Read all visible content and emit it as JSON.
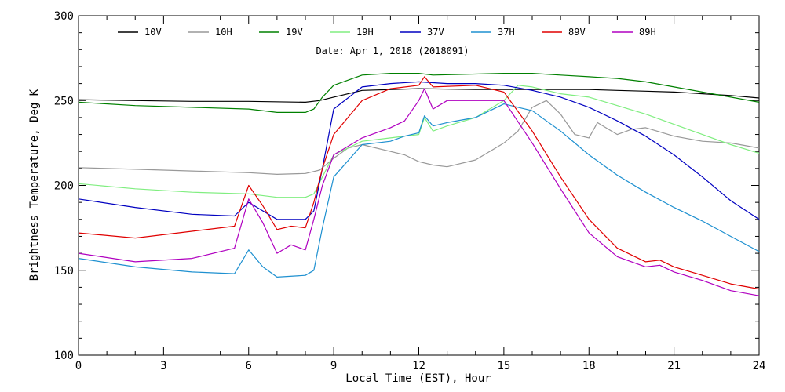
{
  "chart_data": {
    "type": "line",
    "subtitle": "Date: Apr  1, 2018 (2018091)",
    "xlabel": "Local Time (EST), Hour",
    "ylabel": "Brightness Temperature, Deg K",
    "xlim": [
      0,
      24
    ],
    "ylim": [
      100,
      300
    ],
    "xticks": [
      0,
      3,
      6,
      9,
      12,
      15,
      18,
      21,
      24
    ],
    "yticks": [
      100,
      150,
      200,
      250,
      300
    ],
    "grid": false,
    "legend": "top",
    "series": [
      {
        "name": "10V",
        "color": "#000000",
        "points": [
          [
            0,
            250.5
          ],
          [
            2,
            250
          ],
          [
            4,
            249.5
          ],
          [
            6,
            249.5
          ],
          [
            8,
            249
          ],
          [
            8.5,
            250
          ],
          [
            9,
            252
          ],
          [
            10,
            256
          ],
          [
            12,
            257
          ],
          [
            14,
            256.5
          ],
          [
            15,
            256.5
          ],
          [
            16,
            256.5
          ],
          [
            17,
            256.5
          ],
          [
            18,
            256.5
          ],
          [
            19,
            256
          ],
          [
            20,
            255.5
          ],
          [
            21,
            255
          ],
          [
            22,
            254
          ],
          [
            23,
            253
          ],
          [
            24,
            251.5
          ]
        ]
      },
      {
        "name": "10H",
        "color": "#999999",
        "points": [
          [
            0,
            210.5
          ],
          [
            2,
            209.5
          ],
          [
            4,
            208.5
          ],
          [
            6,
            207.5
          ],
          [
            7,
            206.5
          ],
          [
            8,
            207
          ],
          [
            8.5,
            209
          ],
          [
            9,
            216
          ],
          [
            9.5,
            222
          ],
          [
            10,
            224
          ],
          [
            11,
            220
          ],
          [
            11.5,
            218
          ],
          [
            12,
            214
          ],
          [
            12.5,
            212
          ],
          [
            13,
            211
          ],
          [
            14,
            215
          ],
          [
            15,
            225
          ],
          [
            15.5,
            232
          ],
          [
            16,
            246
          ],
          [
            16.5,
            250
          ],
          [
            17,
            242
          ],
          [
            17.5,
            230
          ],
          [
            18,
            228
          ],
          [
            18.3,
            237
          ],
          [
            18.7,
            233
          ],
          [
            19,
            230
          ],
          [
            19.5,
            233
          ],
          [
            20,
            234
          ],
          [
            21,
            229
          ],
          [
            22,
            226
          ],
          [
            23,
            225
          ],
          [
            24,
            222
          ]
        ]
      },
      {
        "name": "19V",
        "color": "#008000",
        "points": [
          [
            0,
            249
          ],
          [
            2,
            247
          ],
          [
            4,
            246
          ],
          [
            6,
            245
          ],
          [
            7,
            243
          ],
          [
            8,
            243
          ],
          [
            8.3,
            245
          ],
          [
            8.6,
            252
          ],
          [
            9,
            259
          ],
          [
            10,
            265
          ],
          [
            11,
            266
          ],
          [
            12,
            266
          ],
          [
            12.5,
            265
          ],
          [
            15,
            266
          ],
          [
            16,
            266
          ],
          [
            17,
            265
          ],
          [
            18,
            264
          ],
          [
            19,
            263
          ],
          [
            20,
            261
          ],
          [
            21,
            258
          ],
          [
            22,
            255
          ],
          [
            23,
            252
          ],
          [
            24,
            249
          ]
        ]
      },
      {
        "name": "19H",
        "color": "#80ee80",
        "points": [
          [
            0,
            201
          ],
          [
            2,
            198
          ],
          [
            4,
            196
          ],
          [
            6,
            195
          ],
          [
            7,
            193
          ],
          [
            8,
            193
          ],
          [
            8.3,
            195
          ],
          [
            8.6,
            205
          ],
          [
            9,
            218
          ],
          [
            10,
            226
          ],
          [
            11,
            228
          ],
          [
            11.5,
            229
          ],
          [
            12,
            230
          ],
          [
            12.2,
            240
          ],
          [
            12.5,
            232
          ],
          [
            13,
            235
          ],
          [
            14,
            240
          ],
          [
            15,
            250
          ],
          [
            15.5,
            259
          ],
          [
            16,
            258
          ],
          [
            17,
            254
          ],
          [
            18,
            252
          ],
          [
            19,
            247
          ],
          [
            20,
            242
          ],
          [
            21,
            236
          ],
          [
            22,
            230
          ],
          [
            23,
            224
          ],
          [
            24,
            219
          ]
        ]
      },
      {
        "name": "37V",
        "color": "#0000c0",
        "points": [
          [
            0,
            192
          ],
          [
            2,
            187
          ],
          [
            4,
            183
          ],
          [
            5.5,
            182
          ],
          [
            6,
            190
          ],
          [
            6.5,
            185
          ],
          [
            7,
            180
          ],
          [
            8,
            180
          ],
          [
            8.3,
            185
          ],
          [
            8.6,
            210
          ],
          [
            9,
            245
          ],
          [
            10,
            258
          ],
          [
            11,
            260
          ],
          [
            12,
            261
          ],
          [
            13,
            260
          ],
          [
            14,
            260
          ],
          [
            15,
            259
          ],
          [
            16,
            256
          ],
          [
            17,
            252
          ],
          [
            18,
            246
          ],
          [
            19,
            238
          ],
          [
            20,
            229
          ],
          [
            21,
            218
          ],
          [
            22,
            205
          ],
          [
            23,
            191
          ],
          [
            24,
            180
          ]
        ]
      },
      {
        "name": "37H",
        "color": "#1e90d0",
        "points": [
          [
            0,
            157
          ],
          [
            2,
            152
          ],
          [
            4,
            149
          ],
          [
            5.5,
            148
          ],
          [
            6,
            162
          ],
          [
            6.5,
            152
          ],
          [
            7,
            146
          ],
          [
            8,
            147
          ],
          [
            8.3,
            150
          ],
          [
            8.6,
            175
          ],
          [
            9,
            205
          ],
          [
            10,
            224
          ],
          [
            11,
            226
          ],
          [
            11.5,
            229
          ],
          [
            12,
            231
          ],
          [
            12.2,
            241
          ],
          [
            12.5,
            235
          ],
          [
            13,
            237
          ],
          [
            14,
            240
          ],
          [
            15,
            248
          ],
          [
            15.5,
            246
          ],
          [
            16,
            244
          ],
          [
            17,
            232
          ],
          [
            18,
            218
          ],
          [
            19,
            206
          ],
          [
            20,
            196
          ],
          [
            21,
            187
          ],
          [
            22,
            179
          ],
          [
            23,
            170
          ],
          [
            24,
            161
          ]
        ]
      },
      {
        "name": "89V",
        "color": "#e00000",
        "points": [
          [
            0,
            172
          ],
          [
            2,
            169
          ],
          [
            4,
            173
          ],
          [
            5.5,
            176
          ],
          [
            6,
            200
          ],
          [
            6.5,
            188
          ],
          [
            7,
            174
          ],
          [
            7.5,
            176
          ],
          [
            8,
            175
          ],
          [
            8.3,
            190
          ],
          [
            8.6,
            210
          ],
          [
            9,
            230
          ],
          [
            10,
            250
          ],
          [
            11,
            257
          ],
          [
            12,
            259
          ],
          [
            12.2,
            264
          ],
          [
            12.5,
            258
          ],
          [
            14,
            259
          ],
          [
            15,
            255
          ],
          [
            16,
            232
          ],
          [
            17,
            205
          ],
          [
            18,
            180
          ],
          [
            19,
            163
          ],
          [
            20,
            155
          ],
          [
            20.5,
            156
          ],
          [
            21,
            152
          ],
          [
            22,
            147
          ],
          [
            23,
            142
          ],
          [
            24,
            139
          ]
        ]
      },
      {
        "name": "89H",
        "color": "#b000c0",
        "points": [
          [
            0,
            160
          ],
          [
            2,
            155
          ],
          [
            4,
            157
          ],
          [
            5.5,
            163
          ],
          [
            6,
            192
          ],
          [
            6.5,
            178
          ],
          [
            7,
            160
          ],
          [
            7.5,
            165
          ],
          [
            8,
            162
          ],
          [
            8.3,
            180
          ],
          [
            8.6,
            200
          ],
          [
            9,
            218
          ],
          [
            10,
            228
          ],
          [
            11,
            234
          ],
          [
            11.5,
            238
          ],
          [
            12,
            250
          ],
          [
            12.2,
            257
          ],
          [
            12.5,
            245
          ],
          [
            13,
            250
          ],
          [
            14,
            250
          ],
          [
            15,
            250
          ],
          [
            16,
            225
          ],
          [
            17,
            198
          ],
          [
            18,
            172
          ],
          [
            19,
            158
          ],
          [
            20,
            152
          ],
          [
            20.5,
            153
          ],
          [
            21,
            149
          ],
          [
            22,
            144
          ],
          [
            23,
            138
          ],
          [
            24,
            135
          ]
        ]
      }
    ]
  }
}
